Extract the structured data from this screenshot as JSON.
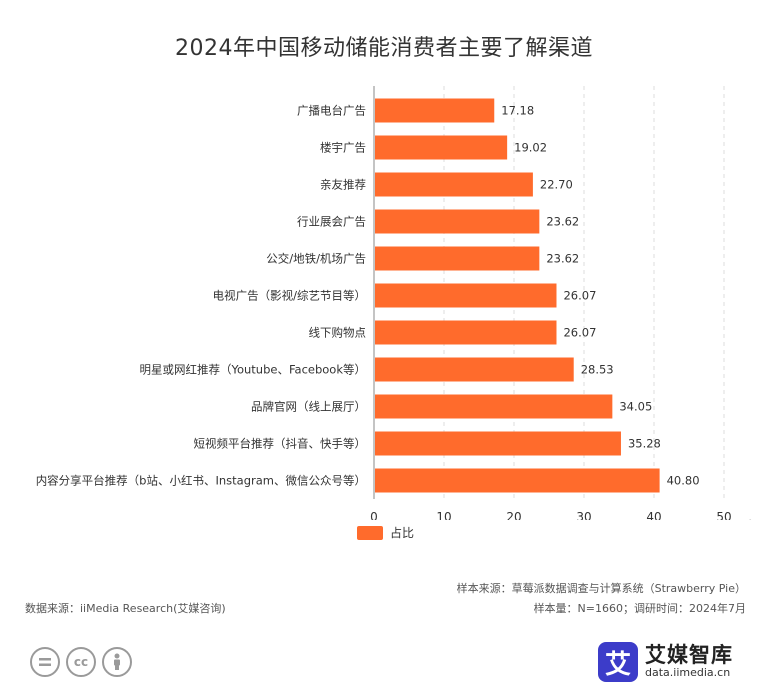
{
  "title": "2024年中国移动储能消费者主要了解渠道",
  "chart_data": {
    "type": "bar",
    "orientation": "horizontal",
    "title": "2024年中国移动储能消费者主要了解渠道",
    "unit": "%",
    "categories": [
      "广播电台广告",
      "楼宇广告",
      "亲友推荐",
      "行业展会广告",
      "公交/地铁/机场广告",
      "电视广告（影视/综艺节目等）",
      "线下购物点",
      "明星或网红推荐（Youtube、Facebook等）",
      "品牌官网（线上展厅）",
      "短视频平台推荐（抖音、快手等）",
      "内容分享平台推荐（b站、小红书、Instagram、微信公众号等）"
    ],
    "series": [
      {
        "name": "占比",
        "values": [
          17.18,
          19.02,
          22.7,
          23.62,
          23.62,
          26.07,
          26.07,
          28.53,
          34.05,
          35.28,
          40.8
        ]
      }
    ],
    "value_labels": [
      "17.18",
      "19.02",
      "22.70",
      "23.62",
      "23.62",
      "26.07",
      "26.07",
      "28.53",
      "34.05",
      "35.28",
      "40.80"
    ],
    "xlim": [
      0,
      50
    ],
    "xticks": [
      "0",
      "10",
      "20",
      "30",
      "40",
      "50"
    ],
    "grid": "vertical dashed",
    "legend_position": "bottom",
    "bar_color": "#FF6B2C"
  },
  "footer": {
    "sample_source": "样本来源：草莓派数据调查与计算系统（Strawberry Pie）",
    "data_source": "数据来源：iiMedia Research(艾媒咨询)",
    "sample_info": "样本量：N=1660；调研时间：2024年7月"
  },
  "brand": {
    "logo_char": "艾",
    "name": "艾媒智库",
    "url": "data.iimedia.cn",
    "color": "#3C3CC9"
  },
  "license_icons": [
    "equals-icon",
    "cc-icon",
    "person-icon"
  ]
}
